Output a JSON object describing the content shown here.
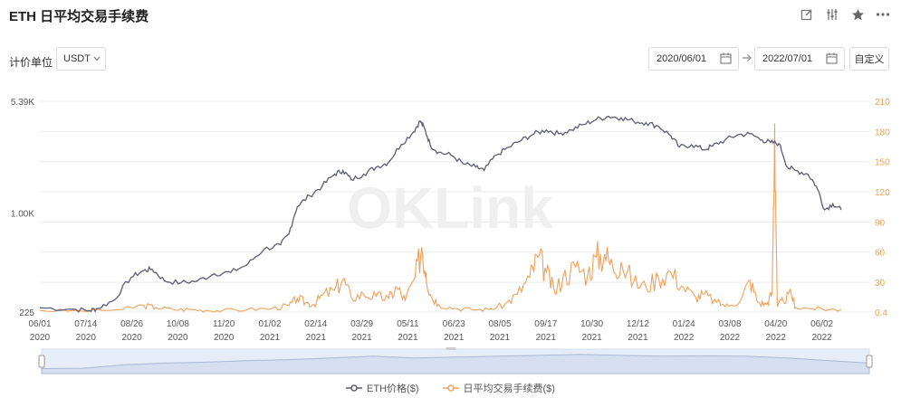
{
  "header": {
    "title": "ETH 日平均交易手续费"
  },
  "toolbar": {
    "icons": [
      "edit-icon",
      "settings-icon",
      "star-icon",
      "more-icon"
    ]
  },
  "controls": {
    "unit_label": "计价单位",
    "unit_value": "USDT",
    "start_date": "2020/06/01",
    "end_date": "2022/07/01",
    "custom_label": "自定义"
  },
  "watermark": "OKLink",
  "colors": {
    "eth_price": "#5b5c72",
    "avg_fee": "#f0a05a",
    "grid": "#ececec",
    "navigator_fill": "#e6edf8",
    "navigator_line": "#aab8d4"
  },
  "chart_data": {
    "type": "line",
    "x_ticks": [
      [
        "06/01",
        "2020"
      ],
      [
        "07/14",
        "2020"
      ],
      [
        "08/26",
        "2020"
      ],
      [
        "10/08",
        "2020"
      ],
      [
        "11/20",
        "2020"
      ],
      [
        "01/02",
        "2021"
      ],
      [
        "02/14",
        "2021"
      ],
      [
        "03/29",
        "2021"
      ],
      [
        "05/11",
        "2021"
      ],
      [
        "06/23",
        "2021"
      ],
      [
        "08/05",
        "2021"
      ],
      [
        "09/17",
        "2021"
      ],
      [
        "10/30",
        "2021"
      ],
      [
        "12/12",
        "2021"
      ],
      [
        "01/24",
        "2022"
      ],
      [
        "03/08",
        "2022"
      ],
      [
        "04/20",
        "2022"
      ],
      [
        "06/02",
        "2022"
      ]
    ],
    "y_left": {
      "scale": "log",
      "range": [
        225,
        5390
      ],
      "ticks": [
        "5.39K",
        "1.00K",
        "225"
      ]
    },
    "y_right": {
      "range": [
        0.4,
        210
      ],
      "ticks": [
        "210",
        "180",
        "150",
        "120",
        "90",
        "60",
        "30",
        "0.4"
      ]
    },
    "series": [
      {
        "name": "ETH价格($)",
        "axis": "left",
        "values": [
          [
            0,
            240
          ],
          [
            0.04,
            235
          ],
          [
            0.06,
            230
          ],
          [
            0.07,
            238
          ],
          [
            0.09,
            270
          ],
          [
            0.11,
            380
          ],
          [
            0.125,
            420
          ],
          [
            0.135,
            430
          ],
          [
            0.15,
            360
          ],
          [
            0.17,
            350
          ],
          [
            0.19,
            360
          ],
          [
            0.21,
            400
          ],
          [
            0.23,
            410
          ],
          [
            0.25,
            460
          ],
          [
            0.27,
            580
          ],
          [
            0.29,
            620
          ],
          [
            0.3,
            730
          ],
          [
            0.31,
            1100
          ],
          [
            0.325,
            1300
          ],
          [
            0.34,
            1500
          ],
          [
            0.355,
            1800
          ],
          [
            0.365,
            1900
          ],
          [
            0.375,
            1650
          ],
          [
            0.39,
            1800
          ],
          [
            0.405,
            2000
          ],
          [
            0.42,
            2150
          ],
          [
            0.435,
            2800
          ],
          [
            0.45,
            3400
          ],
          [
            0.458,
            4000
          ],
          [
            0.463,
            3600
          ],
          [
            0.47,
            2800
          ],
          [
            0.48,
            2500
          ],
          [
            0.495,
            2400
          ],
          [
            0.51,
            2100
          ],
          [
            0.525,
            2000
          ],
          [
            0.535,
            1900
          ],
          [
            0.55,
            2400
          ],
          [
            0.565,
            2700
          ],
          [
            0.58,
            3000
          ],
          [
            0.595,
            3300
          ],
          [
            0.61,
            3500
          ],
          [
            0.625,
            3300
          ],
          [
            0.64,
            3500
          ],
          [
            0.655,
            3800
          ],
          [
            0.67,
            4100
          ],
          [
            0.685,
            4300
          ],
          [
            0.7,
            4200
          ],
          [
            0.715,
            4000
          ],
          [
            0.73,
            3900
          ],
          [
            0.745,
            3700
          ],
          [
            0.76,
            3200
          ],
          [
            0.77,
            2700
          ],
          [
            0.785,
            2800
          ],
          [
            0.8,
            2600
          ],
          [
            0.81,
            2750
          ],
          [
            0.825,
            3000
          ],
          [
            0.84,
            3250
          ],
          [
            0.855,
            3300
          ],
          [
            0.87,
            3000
          ],
          [
            0.88,
            2900
          ],
          [
            0.89,
            2850
          ],
          [
            0.9,
            2000
          ],
          [
            0.91,
            1900
          ],
          [
            0.925,
            1800
          ],
          [
            0.935,
            1500
          ],
          [
            0.945,
            1050
          ],
          [
            0.955,
            1150
          ],
          [
            0.965,
            1050
          ]
        ]
      },
      {
        "name": "日平均交易手续费($)",
        "axis": "right",
        "values": [
          [
            0,
            2
          ],
          [
            0.05,
            1.5
          ],
          [
            0.1,
            3
          ],
          [
            0.125,
            7
          ],
          [
            0.14,
            5
          ],
          [
            0.16,
            3
          ],
          [
            0.18,
            3
          ],
          [
            0.2,
            2
          ],
          [
            0.22,
            2
          ],
          [
            0.25,
            3
          ],
          [
            0.28,
            4
          ],
          [
            0.3,
            7
          ],
          [
            0.31,
            14
          ],
          [
            0.32,
            10
          ],
          [
            0.33,
            8
          ],
          [
            0.34,
            17
          ],
          [
            0.355,
            22
          ],
          [
            0.365,
            33
          ],
          [
            0.375,
            15
          ],
          [
            0.39,
            18
          ],
          [
            0.405,
            16
          ],
          [
            0.42,
            14
          ],
          [
            0.43,
            25
          ],
          [
            0.44,
            12
          ],
          [
            0.452,
            35
          ],
          [
            0.46,
            65
          ],
          [
            0.465,
            40
          ],
          [
            0.47,
            18
          ],
          [
            0.48,
            8
          ],
          [
            0.5,
            4
          ],
          [
            0.52,
            3
          ],
          [
            0.54,
            3
          ],
          [
            0.56,
            8
          ],
          [
            0.575,
            18
          ],
          [
            0.59,
            35
          ],
          [
            0.6,
            55
          ],
          [
            0.61,
            40
          ],
          [
            0.62,
            20
          ],
          [
            0.63,
            35
          ],
          [
            0.645,
            45
          ],
          [
            0.66,
            38
          ],
          [
            0.67,
            55
          ],
          [
            0.68,
            58
          ],
          [
            0.69,
            45
          ],
          [
            0.7,
            50
          ],
          [
            0.715,
            30
          ],
          [
            0.73,
            25
          ],
          [
            0.745,
            35
          ],
          [
            0.76,
            40
          ],
          [
            0.775,
            25
          ],
          [
            0.79,
            15
          ],
          [
            0.8,
            18
          ],
          [
            0.815,
            10
          ],
          [
            0.83,
            6
          ],
          [
            0.845,
            14
          ],
          [
            0.855,
            32
          ],
          [
            0.865,
            10
          ],
          [
            0.875,
            8
          ],
          [
            0.882,
            20
          ],
          [
            0.885,
            188
          ],
          [
            0.888,
            6
          ],
          [
            0.895,
            12
          ],
          [
            0.905,
            18
          ],
          [
            0.91,
            5
          ],
          [
            0.93,
            4
          ],
          [
            0.95,
            3
          ],
          [
            0.965,
            3
          ]
        ]
      }
    ]
  },
  "navigator": {
    "profile": [
      0.92,
      0.9,
      0.7,
      0.6,
      0.55,
      0.45,
      0.4,
      0.3,
      0.2,
      0.3,
      0.25,
      0.2,
      0.15,
      0.1,
      0.15,
      0.2,
      0.18,
      0.2,
      0.3,
      0.45,
      0.6
    ]
  }
}
